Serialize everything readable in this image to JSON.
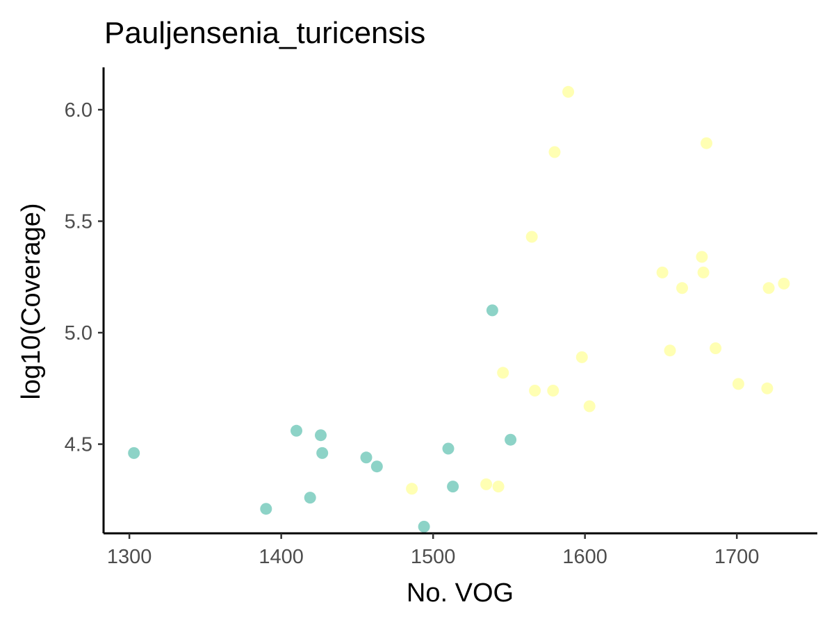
{
  "chart_data": {
    "type": "scatter",
    "title": "Pauljensenia_turicensis",
    "xlabel": "No. VOG",
    "ylabel": "log10(Coverage)",
    "xlim": [
      1283,
      1753
    ],
    "ylim": [
      4.1,
      6.19
    ],
    "x_ticks": [
      1300,
      1400,
      1500,
      1600,
      1700
    ],
    "x_tick_labels": [
      "1300",
      "1400",
      "1500",
      "1600",
      "1700"
    ],
    "y_ticks": [
      4.5,
      5.0,
      5.5,
      6.0
    ],
    "y_tick_labels": [
      "4.5",
      "5.0",
      "5.5",
      "6.0"
    ],
    "grid": false,
    "legend": "none",
    "series": [
      {
        "color": "#8dd3c7",
        "points": [
          [
            1303,
            4.46
          ],
          [
            1390,
            4.21
          ],
          [
            1410,
            4.56
          ],
          [
            1419,
            4.26
          ],
          [
            1426,
            4.54
          ],
          [
            1427,
            4.46
          ],
          [
            1456,
            4.44
          ],
          [
            1463,
            4.4
          ],
          [
            1494,
            4.13
          ],
          [
            1510,
            4.48
          ],
          [
            1513,
            4.31
          ],
          [
            1539,
            5.1
          ],
          [
            1551,
            4.52
          ]
        ]
      },
      {
        "color": "#ffffb3",
        "points": [
          [
            1486,
            4.3
          ],
          [
            1535,
            4.32
          ],
          [
            1543,
            4.31
          ],
          [
            1546,
            4.82
          ],
          [
            1565,
            5.43
          ],
          [
            1567,
            4.74
          ],
          [
            1579,
            4.74
          ],
          [
            1580,
            5.81
          ],
          [
            1589,
            6.08
          ],
          [
            1598,
            4.89
          ],
          [
            1603,
            4.67
          ],
          [
            1651,
            5.27
          ],
          [
            1656,
            4.92
          ],
          [
            1664,
            5.2
          ],
          [
            1677,
            5.34
          ],
          [
            1678,
            5.27
          ],
          [
            1680,
            5.85
          ],
          [
            1686,
            4.93
          ],
          [
            1701,
            4.77
          ],
          [
            1720,
            4.75
          ],
          [
            1721,
            5.2
          ],
          [
            1731,
            5.22
          ]
        ]
      }
    ]
  }
}
